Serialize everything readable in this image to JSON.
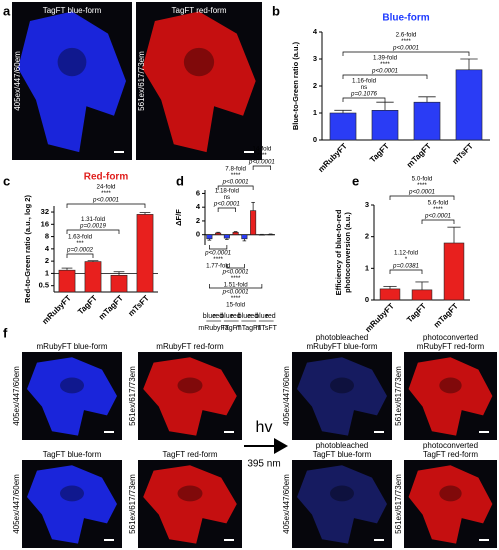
{
  "figure": {
    "panel_letters": [
      "a",
      "b",
      "c",
      "d",
      "e",
      "f"
    ],
    "panel_a": {
      "images": [
        {
          "title": [
            "TagFT blue-form"
          ],
          "side": "405ex/447/60em",
          "color": "#1e2cff"
        },
        {
          "title": [
            "TagFT red-form"
          ],
          "side": "561ex/617/73em",
          "color": "#e81212"
        }
      ]
    },
    "panel_f": {
      "images": [
        {
          "title": [
            "mRubyFT blue-form"
          ],
          "side": "405ex/447/60em",
          "color": "#1e2cff"
        },
        {
          "title": [
            "mRubyFT red-form"
          ],
          "side": "561ex/617/73em",
          "color": "#e81212"
        },
        {
          "title": [
            "photobleached",
            "mRubyFT blue-form"
          ],
          "side": "405ex/447/60em",
          "color": "#1a2070"
        },
        {
          "title": [
            "photoconverted",
            "mRubyFT red-form"
          ],
          "side": "561ex/617/73em",
          "color": "#e81212"
        },
        {
          "title": [
            "TagFT blue-form"
          ],
          "side": "405ex/447/60em",
          "color": "#1e2cff"
        },
        {
          "title": [
            "TagFT red-form"
          ],
          "side": "561ex/617/73em",
          "color": "#e81212"
        },
        {
          "title": [
            "photobleached",
            "TagFT blue-form"
          ],
          "side": "405ex/447/60em",
          "color": "#1a2070"
        },
        {
          "title": [
            "photoconverted",
            "TagFT red-form"
          ],
          "side": "561ex/617/73em",
          "color": "#e81212"
        }
      ],
      "hv": "hv",
      "wavelength": "395 nm"
    }
  },
  "chart_data": [
    {
      "type": "bar",
      "title": "Blue-form",
      "title_color": "#1f3bff",
      "ylabel": [
        "Blue-to-Green ratio (a.u.)"
      ],
      "categories": [
        "mRubyFT",
        "TagFT",
        "mTagFT",
        "mTsFT"
      ],
      "values": [
        1.0,
        1.1,
        1.4,
        2.6
      ],
      "errors": [
        0.1,
        0.3,
        0.2,
        0.4
      ],
      "color": "#2a3cf5",
      "ylim": [
        0,
        4
      ],
      "yticks": [
        0,
        1,
        2,
        3,
        4
      ],
      "annotations": [
        {
          "label": "1.16-fold",
          "stars": "ns",
          "p": "p=0.1076"
        },
        {
          "label": "1.39-fold",
          "stars": "****",
          "p": "p<0.0001"
        },
        {
          "label": "2.6-fold",
          "stars": "****",
          "p": "p<0.0001"
        }
      ]
    },
    {
      "type": "bar",
      "title": "Red-form",
      "title_color": "#e0201e",
      "ylabel": [
        "Red-to-Green ratio (a.u., log 2)"
      ],
      "categories": [
        "mRubyFT",
        "TagFT",
        "mTagFT",
        "mTsFT"
      ],
      "values": [
        1.2,
        1.95,
        0.9,
        28
      ],
      "errors": [
        0.15,
        0.1,
        0.2,
        3
      ],
      "color": "#e8201e",
      "ylim": [
        0.35,
        45
      ],
      "yticks": [
        0.5,
        1,
        2,
        4,
        8,
        16,
        32
      ],
      "log_base": 2,
      "hline": 1,
      "annotations": [
        {
          "label": "24-fold",
          "stars": "****",
          "p": "p<0.0001"
        },
        {
          "label": "1.31-fold",
          "p": "p=0.0019"
        },
        {
          "label": "1.63-fold",
          "stars": "***",
          "p": "p=0.0002"
        }
      ]
    },
    {
      "type": "bar",
      "ylabel": [
        "ΔF/F"
      ],
      "categories": [
        "mRubyFT",
        "TagFT",
        "mTagFT",
        "mTsFT"
      ],
      "series": [
        {
          "name": "blue",
          "color": "#2a3cf5",
          "values": [
            -0.6,
            -0.5,
            -0.6,
            0.0
          ],
          "errors": [
            0.2,
            0.2,
            0.3,
            0.05
          ]
        },
        {
          "name": "red",
          "color": "#e8201e",
          "values": [
            0.25,
            0.35,
            3.5,
            0.05
          ],
          "errors": [
            0.1,
            0.1,
            1.2,
            0.05
          ]
        }
      ],
      "ylim": [
        -1.5,
        6.5
      ],
      "yticks": [
        0,
        2,
        4,
        6
      ],
      "annotations": [
        {
          "label": "1.18-fold",
          "stars": "ns",
          "p": "p<0.0001"
        },
        {
          "label": "7.8-fold",
          "stars": "****",
          "p": "p<0.0001"
        },
        {
          "label": "14-fold",
          "stars": "****",
          "p": "p<0.0001"
        },
        {
          "label": "1.77-fold",
          "stars": "****",
          "p": "p<0.0001"
        },
        {
          "label": "1.51-fold",
          "stars": "****",
          "p": "p<0.0001"
        },
        {
          "label": "15-fold",
          "stars": "****",
          "p": "p<0.0001"
        }
      ]
    },
    {
      "type": "bar",
      "ylabel": [
        "Efficiency of blue-to-red",
        "photoconversion (a.u.)"
      ],
      "categories": [
        "mRubyFT",
        "TagFT",
        "mTagFT"
      ],
      "values": [
        0.35,
        0.32,
        1.8
      ],
      "errors": [
        0.08,
        0.25,
        0.5
      ],
      "color": "#e8201e",
      "ylim": [
        0,
        3
      ],
      "yticks": [
        0,
        1,
        2,
        3
      ],
      "annotations": [
        {
          "label": "5.0-fold",
          "stars": "****",
          "p": "p<0.0001"
        },
        {
          "label": "1.12-fold",
          "stars": "*",
          "p": "p=0.0381"
        },
        {
          "label": "5.6-fold",
          "stars": "****",
          "p": "p<0.0001"
        }
      ]
    }
  ]
}
